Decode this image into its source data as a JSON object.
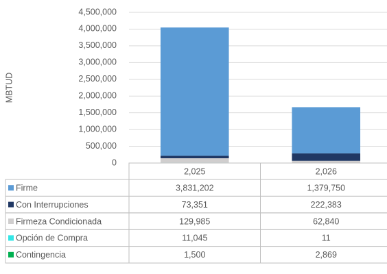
{
  "chart_data": {
    "type": "bar",
    "stacked": true,
    "ylabel": "MBTUD",
    "categories": [
      "2,025",
      "2,026"
    ],
    "series": [
      {
        "name": "Firme",
        "color": "#5b9bd5",
        "values": [
          3831202,
          1379750
        ],
        "value_labels": [
          "3,831,202",
          "1,379,750"
        ]
      },
      {
        "name": "Con Interrupciones",
        "color": "#203864",
        "values": [
          73351,
          222383
        ],
        "value_labels": [
          "73,351",
          "222,383"
        ]
      },
      {
        "name": "Firmeza Condicionada",
        "color": "#d0cece",
        "values": [
          129985,
          62840
        ],
        "value_labels": [
          "129,985",
          "62,840"
        ]
      },
      {
        "name": "Opción de Compra",
        "color": "#33e6e6",
        "values": [
          11045,
          11
        ],
        "value_labels": [
          "11,045",
          "11"
        ]
      },
      {
        "name": "Contingencia",
        "color": "#00b050",
        "values": [
          1500,
          2869
        ],
        "value_labels": [
          "1,500",
          "2,869"
        ]
      }
    ],
    "ylim": [
      0,
      4500000
    ],
    "yticks": [
      0,
      {
        "value": 500000,
        "label": "500,000"
      },
      {
        "value": 1000000,
        "label": "1,000,000"
      },
      {
        "value": 1500000,
        "label": "1,500,000"
      },
      {
        "value": 2000000,
        "label": "2,000,000"
      },
      {
        "value": 2500000,
        "label": "2,500,000"
      },
      {
        "value": 3000000,
        "label": "3,000,000"
      },
      {
        "value": 3500000,
        "label": "3,500,000"
      },
      {
        "value": 4000000,
        "label": "4,000,000"
      },
      {
        "value": 4500000,
        "label": "4,500,000"
      }
    ],
    "grid": true
  }
}
